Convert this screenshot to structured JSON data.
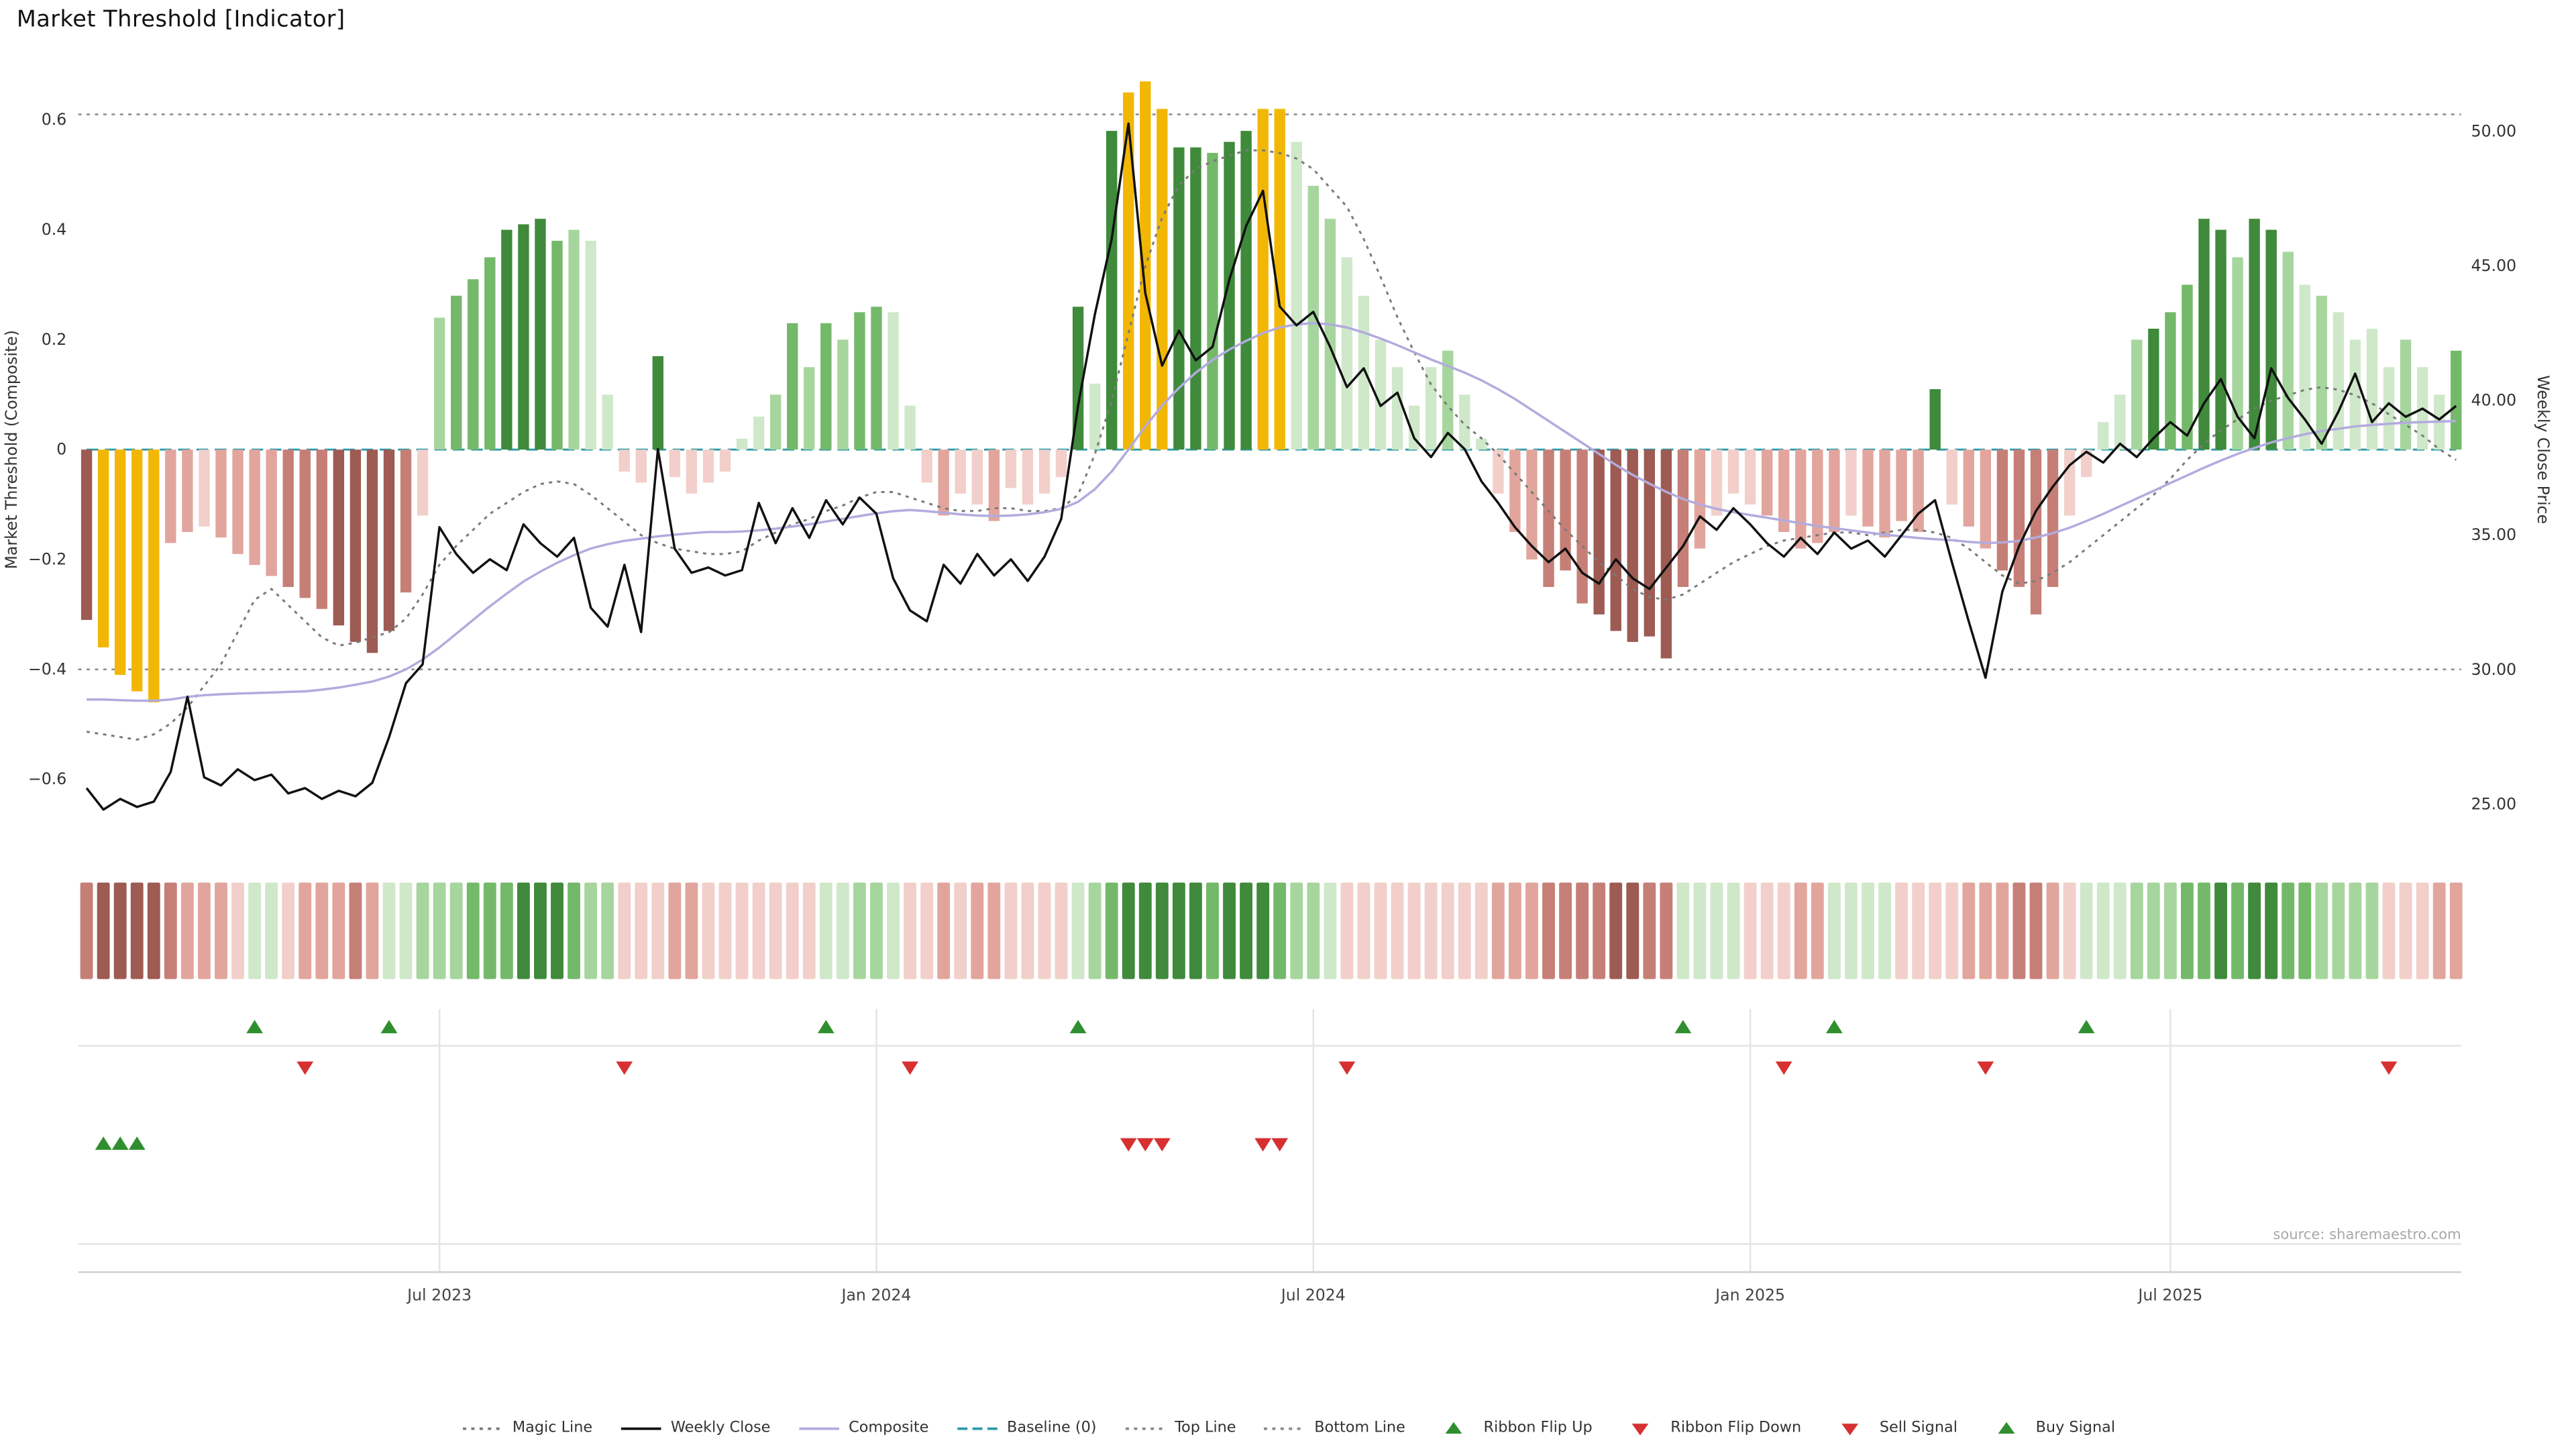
{
  "title": "Market Threshold [Indicator]",
  "source": "source: sharemaestro.com",
  "axes": {
    "left_label": "Market Threshold (Composite)",
    "right_label": "Weekly Close Price",
    "left_ticks": [
      {
        "label": "0.6",
        "value": 0.6
      },
      {
        "label": "0.4",
        "value": 0.4
      },
      {
        "label": "0.2",
        "value": 0.2
      },
      {
        "label": "0",
        "value": 0
      },
      {
        "label": "−0.2",
        "value": -0.2
      },
      {
        "label": "−0.4",
        "value": -0.4
      },
      {
        "label": "−0.6",
        "value": -0.6
      }
    ],
    "right_ticks": [
      {
        "label": "50.00",
        "value": 50
      },
      {
        "label": "45.00",
        "value": 45
      },
      {
        "label": "40.00",
        "value": 40
      },
      {
        "label": "35.00",
        "value": 35
      },
      {
        "label": "30.00",
        "value": 30
      },
      {
        "label": "25.00",
        "value": 25
      }
    ],
    "x_ticks": [
      {
        "label": "Jul 2023",
        "index": 21
      },
      {
        "label": "Jan 2024",
        "index": 47
      },
      {
        "label": "Jul 2024",
        "index": 73
      },
      {
        "label": "Jan 2025",
        "index": 99
      },
      {
        "label": "Jul 2025",
        "index": 124
      }
    ]
  },
  "colors": {
    "green_scale": [
      "#cfe8ca",
      "#a6d69d",
      "#74b96a",
      "#3f8a3b"
    ],
    "red_scale": [
      "#f2cfca",
      "#e2a59d",
      "#c67f77",
      "#9d5b53"
    ],
    "gold": "#f2b705",
    "close_line": "#111111",
    "composite_line": "#b2abde",
    "magic_line": "#7a7a7a",
    "baseline": "#2d9aa8",
    "top_bottom_line": "#8a8a8a",
    "flip_up": "#2f8f2f",
    "flip_down": "#d63031",
    "sell": "#d63031",
    "buy": "#2f8f2f",
    "grid": "#e4e4e4",
    "axis_line": "#cfcfcf"
  },
  "chart_data": {
    "type": "bar+line",
    "n_weeks": 142,
    "top_line": 0.61,
    "bottom_line": -0.4,
    "baseline": 0,
    "left_axis_range": [
      -0.72,
      0.72
    ],
    "right_axis_range": [
      23.0,
      52.5
    ],
    "threshold_bars": [
      -0.31,
      -0.36,
      -0.41,
      -0.44,
      -0.46,
      -0.17,
      -0.15,
      -0.14,
      -0.16,
      -0.19,
      -0.21,
      -0.23,
      -0.25,
      -0.27,
      -0.29,
      -0.32,
      -0.35,
      -0.37,
      -0.33,
      -0.26,
      -0.12,
      0.24,
      0.28,
      0.31,
      0.35,
      0.4,
      0.41,
      0.42,
      0.38,
      0.4,
      0.38,
      0.1,
      -0.04,
      -0.06,
      0.17,
      -0.05,
      -0.08,
      -0.06,
      -0.04,
      0.02,
      0.06,
      0.1,
      0.23,
      0.15,
      0.23,
      0.2,
      0.25,
      0.26,
      0.25,
      0.08,
      -0.06,
      -0.12,
      -0.08,
      -0.1,
      -0.13,
      -0.07,
      -0.1,
      -0.08,
      -0.05,
      0.26,
      0.12,
      0.58,
      0.65,
      0.67,
      0.62,
      0.55,
      0.55,
      0.54,
      0.56,
      0.58,
      0.62,
      0.62,
      0.56,
      0.48,
      0.42,
      0.35,
      0.28,
      0.2,
      0.15,
      0.08,
      0.15,
      0.18,
      0.1,
      0.02,
      -0.08,
      -0.15,
      -0.2,
      -0.25,
      -0.22,
      -0.28,
      -0.3,
      -0.33,
      -0.35,
      -0.34,
      -0.38,
      -0.25,
      -0.18,
      -0.12,
      -0.08,
      -0.1,
      -0.12,
      -0.15,
      -0.18,
      -0.17,
      -0.15,
      -0.12,
      -0.14,
      -0.16,
      -0.13,
      -0.15,
      0.11,
      -0.1,
      -0.14,
      -0.18,
      -0.22,
      -0.25,
      -0.3,
      -0.25,
      -0.12,
      -0.05,
      0.05,
      0.1,
      0.2,
      0.22,
      0.25,
      0.3,
      0.42,
      0.4,
      0.35,
      0.42,
      0.4,
      0.36,
      0.3,
      0.28,
      0.25,
      0.2,
      0.22,
      0.15,
      0.2,
      0.15,
      0.1,
      0.18
    ],
    "bar_colors": [
      "r4",
      "gold",
      "gold",
      "gold",
      "gold",
      "r2",
      "r2",
      "r1",
      "r2",
      "r2",
      "r2",
      "r2",
      "r3",
      "r3",
      "r3",
      "r4",
      "r4",
      "r4",
      "r4",
      "r3",
      "r1",
      "g2",
      "g3",
      "g3",
      "g3",
      "g4",
      "g4",
      "g4",
      "g3",
      "g2",
      "g1",
      "g1",
      "r1",
      "r1",
      "g4",
      "r1",
      "r1",
      "r1",
      "r1",
      "g1",
      "g1",
      "g2",
      "g3",
      "g2",
      "g3",
      "g2",
      "g3",
      "g3",
      "g1",
      "g1",
      "r1",
      "r2",
      "r1",
      "r1",
      "r2",
      "r1",
      "r1",
      "r1",
      "r1",
      "g4",
      "g1",
      "g4",
      "gold",
      "gold",
      "gold",
      "g4",
      "g4",
      "g3",
      "g4",
      "g4",
      "gold",
      "gold",
      "g1",
      "g2",
      "g2",
      "g1",
      "g1",
      "g1",
      "g1",
      "g1",
      "g1",
      "g2",
      "g1",
      "g1",
      "r1",
      "r2",
      "r2",
      "r3",
      "r3",
      "r3",
      "r4",
      "r4",
      "r4",
      "r4",
      "r4",
      "r3",
      "r2",
      "r1",
      "r1",
      "r1",
      "r2",
      "r2",
      "r2",
      "r2",
      "r2",
      "r1",
      "r2",
      "r2",
      "r2",
      "r2",
      "g4",
      "r1",
      "r2",
      "r2",
      "r3",
      "r3",
      "r3",
      "r3",
      "r1",
      "r1",
      "g1",
      "g1",
      "g2",
      "g4",
      "g3",
      "g3",
      "g4",
      "g4",
      "g2",
      "g4",
      "g4",
      "g2",
      "g1",
      "g2",
      "g1",
      "g1",
      "g1",
      "g1",
      "g2",
      "g1",
      "g1",
      "g3"
    ],
    "weekly_close": [
      25.6,
      24.8,
      25.2,
      24.9,
      25.1,
      26.2,
      29.0,
      26.0,
      25.7,
      26.3,
      25.9,
      26.1,
      25.4,
      25.6,
      25.2,
      25.5,
      25.3,
      25.8,
      27.5,
      29.5,
      30.2,
      35.3,
      34.3,
      33.6,
      34.1,
      33.7,
      35.4,
      34.7,
      34.2,
      34.9,
      32.3,
      31.6,
      33.9,
      31.4,
      38.2,
      34.5,
      33.6,
      33.8,
      33.5,
      33.7,
      36.2,
      34.7,
      36.0,
      34.9,
      36.3,
      35.4,
      36.4,
      35.8,
      33.4,
      32.2,
      31.8,
      33.9,
      33.2,
      34.3,
      33.5,
      34.1,
      33.3,
      34.2,
      35.6,
      39.8,
      43.2,
      46.0,
      50.3,
      44.0,
      41.3,
      42.6,
      41.5,
      42.0,
      44.5,
      46.5,
      47.8,
      43.5,
      42.8,
      43.3,
      42.0,
      40.5,
      41.2,
      39.8,
      40.3,
      38.6,
      37.9,
      38.8,
      38.2,
      37.0,
      36.2,
      35.3,
      34.6,
      34.0,
      34.5,
      33.6,
      33.2,
      34.1,
      33.4,
      33.0,
      33.8,
      34.6,
      35.7,
      35.2,
      36.0,
      35.4,
      34.7,
      34.2,
      34.9,
      34.3,
      35.1,
      34.5,
      34.8,
      34.2,
      35.0,
      35.8,
      36.3,
      34.0,
      31.8,
      29.7,
      32.9,
      34.6,
      35.9,
      36.8,
      37.6,
      38.1,
      37.7,
      38.4,
      37.9,
      38.6,
      39.2,
      38.7,
      39.9,
      40.8,
      39.4,
      38.6,
      41.2,
      40.1,
      39.3,
      38.4,
      39.6,
      41.0,
      39.2,
      39.9,
      39.4,
      39.7,
      39.3,
      39.8
    ],
    "composite": [
      -0.455,
      -0.455,
      -0.456,
      -0.457,
      -0.457,
      -0.455,
      -0.45,
      -0.447,
      -0.445,
      -0.444,
      -0.443,
      -0.442,
      -0.441,
      -0.44,
      -0.437,
      -0.433,
      -0.428,
      -0.422,
      -0.413,
      -0.4,
      -0.382,
      -0.36,
      -0.335,
      -0.31,
      -0.285,
      -0.262,
      -0.24,
      -0.222,
      -0.206,
      -0.192,
      -0.18,
      -0.172,
      -0.166,
      -0.162,
      -0.158,
      -0.155,
      -0.152,
      -0.15,
      -0.15,
      -0.149,
      -0.147,
      -0.144,
      -0.14,
      -0.136,
      -0.131,
      -0.126,
      -0.121,
      -0.116,
      -0.112,
      -0.11,
      -0.112,
      -0.115,
      -0.118,
      -0.12,
      -0.121,
      -0.12,
      -0.118,
      -0.114,
      -0.108,
      -0.095,
      -0.072,
      -0.04,
      0.0,
      0.042,
      0.08,
      0.112,
      0.14,
      0.163,
      0.182,
      0.198,
      0.212,
      0.222,
      0.228,
      0.23,
      0.228,
      0.222,
      0.213,
      0.202,
      0.19,
      0.177,
      0.164,
      0.152,
      0.14,
      0.126,
      0.11,
      0.092,
      0.072,
      0.052,
      0.032,
      0.012,
      -0.008,
      -0.028,
      -0.046,
      -0.062,
      -0.077,
      -0.09,
      -0.1,
      -0.108,
      -0.114,
      -0.119,
      -0.124,
      -0.129,
      -0.134,
      -0.139,
      -0.143,
      -0.147,
      -0.151,
      -0.155,
      -0.158,
      -0.161,
      -0.163,
      -0.165,
      -0.168,
      -0.17,
      -0.169,
      -0.166,
      -0.16,
      -0.152,
      -0.142,
      -0.13,
      -0.117,
      -0.103,
      -0.089,
      -0.075,
      -0.061,
      -0.047,
      -0.033,
      -0.02,
      -0.008,
      0.003,
      0.013,
      0.021,
      0.028,
      0.034,
      0.038,
      0.042,
      0.045,
      0.047,
      0.049,
      0.05,
      0.051,
      0.052
    ],
    "magic": [
      27.7,
      27.6,
      27.5,
      27.4,
      27.6,
      28.0,
      28.6,
      29.4,
      30.2,
      31.4,
      32.6,
      33.0,
      32.4,
      31.8,
      31.2,
      30.9,
      31.0,
      31.2,
      31.4,
      31.9,
      32.8,
      33.9,
      34.6,
      35.2,
      35.8,
      36.2,
      36.6,
      36.9,
      37.0,
      36.9,
      36.5,
      36.0,
      35.5,
      35.0,
      34.7,
      34.5,
      34.4,
      34.3,
      34.3,
      34.4,
      34.8,
      35.1,
      35.4,
      35.6,
      35.9,
      36.1,
      36.4,
      36.6,
      36.6,
      36.4,
      36.2,
      36.0,
      35.9,
      35.9,
      36.0,
      36.0,
      35.9,
      35.9,
      36.0,
      36.5,
      38.0,
      40.0,
      42.5,
      45.0,
      46.8,
      48.0,
      48.6,
      48.9,
      49.1,
      49.3,
      49.3,
      49.2,
      49.0,
      48.6,
      47.9,
      47.2,
      46.0,
      44.6,
      43.1,
      41.8,
      40.6,
      39.8,
      39.1,
      38.6,
      38.0,
      37.3,
      36.6,
      35.9,
      35.2,
      34.6,
      34.0,
      33.5,
      33.0,
      32.7,
      32.6,
      32.8,
      33.2,
      33.6,
      34.0,
      34.3,
      34.6,
      34.8,
      34.9,
      35.0,
      35.1,
      35.1,
      35.0,
      35.1,
      35.2,
      35.2,
      35.1,
      34.9,
      34.5,
      34.0,
      33.5,
      33.2,
      33.3,
      33.6,
      34.0,
      34.5,
      35.0,
      35.5,
      36.0,
      36.5,
      37.1,
      37.8,
      38.4,
      38.9,
      39.3,
      39.7,
      40.0,
      40.2,
      40.4,
      40.5,
      40.4,
      40.2,
      39.9,
      39.5,
      39.1,
      38.7,
      38.2,
      37.8
    ],
    "ribbon": [
      "r3",
      "r4",
      "r4",
      "r4",
      "r4",
      "r3",
      "r2",
      "r2",
      "r2",
      "r1",
      "g1",
      "g1",
      "r1",
      "r2",
      "r2",
      "r2",
      "r3",
      "r2",
      "g1",
      "g1",
      "g2",
      "g2",
      "g2",
      "g3",
      "g3",
      "g3",
      "g4",
      "g4",
      "g4",
      "g3",
      "g2",
      "g2",
      "r1",
      "r1",
      "r1",
      "r2",
      "r2",
      "r1",
      "r1",
      "r1",
      "r1",
      "r1",
      "r1",
      "r1",
      "g1",
      "g1",
      "g2",
      "g2",
      "g1",
      "r1",
      "r1",
      "r2",
      "r1",
      "r2",
      "r2",
      "r1",
      "r1",
      "r1",
      "r1",
      "g1",
      "g2",
      "g3",
      "g4",
      "g4",
      "g4",
      "g4",
      "g4",
      "g3",
      "g4",
      "g4",
      "g4",
      "g3",
      "g2",
      "g2",
      "g1",
      "r1",
      "r1",
      "r1",
      "r1",
      "r1",
      "r1",
      "r1",
      "r1",
      "r1",
      "r2",
      "r2",
      "r2",
      "r3",
      "r3",
      "r3",
      "r3",
      "r4",
      "r4",
      "r3",
      "r3",
      "g1",
      "g1",
      "g1",
      "g1",
      "r1",
      "r1",
      "r1",
      "r2",
      "r2",
      "g1",
      "g1",
      "g1",
      "g1",
      "r1",
      "r1",
      "r1",
      "r1",
      "r2",
      "r2",
      "r2",
      "r3",
      "r3",
      "r2",
      "r1",
      "g1",
      "g1",
      "g1",
      "g2",
      "g2",
      "g2",
      "g3",
      "g3",
      "g4",
      "g3",
      "g4",
      "g4",
      "g3",
      "g3",
      "g2",
      "g2",
      "g2",
      "g2",
      "r1",
      "r1",
      "r1",
      "r2",
      "r2"
    ],
    "signals": {
      "ribbon_flip_up": [
        10,
        18,
        44,
        59,
        95,
        104,
        119
      ],
      "ribbon_flip_down": [
        13,
        32,
        49,
        75,
        101,
        113,
        137
      ],
      "sell": [
        62,
        63,
        64,
        70,
        71
      ],
      "buy": [
        1,
        2,
        3
      ]
    }
  },
  "legend": {
    "items": [
      {
        "label": "Magic Line",
        "swatch": "line-dotted",
        "color": "#7a7a7a"
      },
      {
        "label": "Weekly Close",
        "swatch": "line",
        "color": "#111111"
      },
      {
        "label": "Composite",
        "swatch": "line",
        "color": "#b2abde"
      },
      {
        "label": "Baseline (0)",
        "swatch": "line-dashed",
        "color": "#2d9aa8"
      },
      {
        "label": "Top Line",
        "swatch": "line-dotted",
        "color": "#8a8a8a"
      },
      {
        "label": "Bottom Line",
        "swatch": "line-dotted",
        "color": "#8a8a8a"
      },
      {
        "label": "Ribbon Flip Up",
        "swatch": "triangle-up",
        "color": "#2f8f2f"
      },
      {
        "label": "Ribbon Flip Down",
        "swatch": "triangle-down",
        "color": "#d63031"
      },
      {
        "label": "Sell Signal",
        "swatch": "triangle-down",
        "color": "#d63031"
      },
      {
        "label": "Buy Signal",
        "swatch": "triangle-up",
        "color": "#2f8f2f"
      }
    ]
  }
}
